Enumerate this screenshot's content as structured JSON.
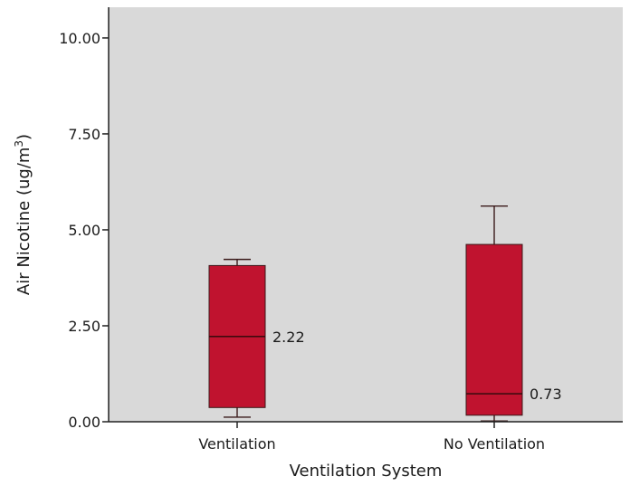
{
  "chart_data": {
    "type": "boxplot",
    "title": "",
    "xlabel": "Ventilation System",
    "ylabel": "Air Nicotine (ug/m",
    "ylabel_superscript": "3",
    "ylabel_close": ")",
    "ylim": [
      0,
      10.8
    ],
    "yticks": [
      {
        "value": 0,
        "label": "0.00"
      },
      {
        "value": 2.5,
        "label": "2.50"
      },
      {
        "value": 5,
        "label": "5.00"
      },
      {
        "value": 7.5,
        "label": "7.50"
      },
      {
        "value": 10,
        "label": "10.00"
      }
    ],
    "categories": [
      "Ventilation",
      "No Ventilation"
    ],
    "boxes": [
      {
        "category": "Ventilation",
        "min": 0.12,
        "q1": 0.37,
        "median": 2.22,
        "q3": 4.07,
        "max": 4.23,
        "median_label": "2.22"
      },
      {
        "category": "No Ventilation",
        "min": 0.02,
        "q1": 0.17,
        "median": 0.73,
        "q3": 4.62,
        "max": 5.62,
        "median_label": "0.73"
      }
    ],
    "grid": false,
    "colors": {
      "plot_bg": "#d9d9d9",
      "box_fill": "#c0132f",
      "box_stroke": "#3a1a1a",
      "axis": "#222222"
    }
  }
}
